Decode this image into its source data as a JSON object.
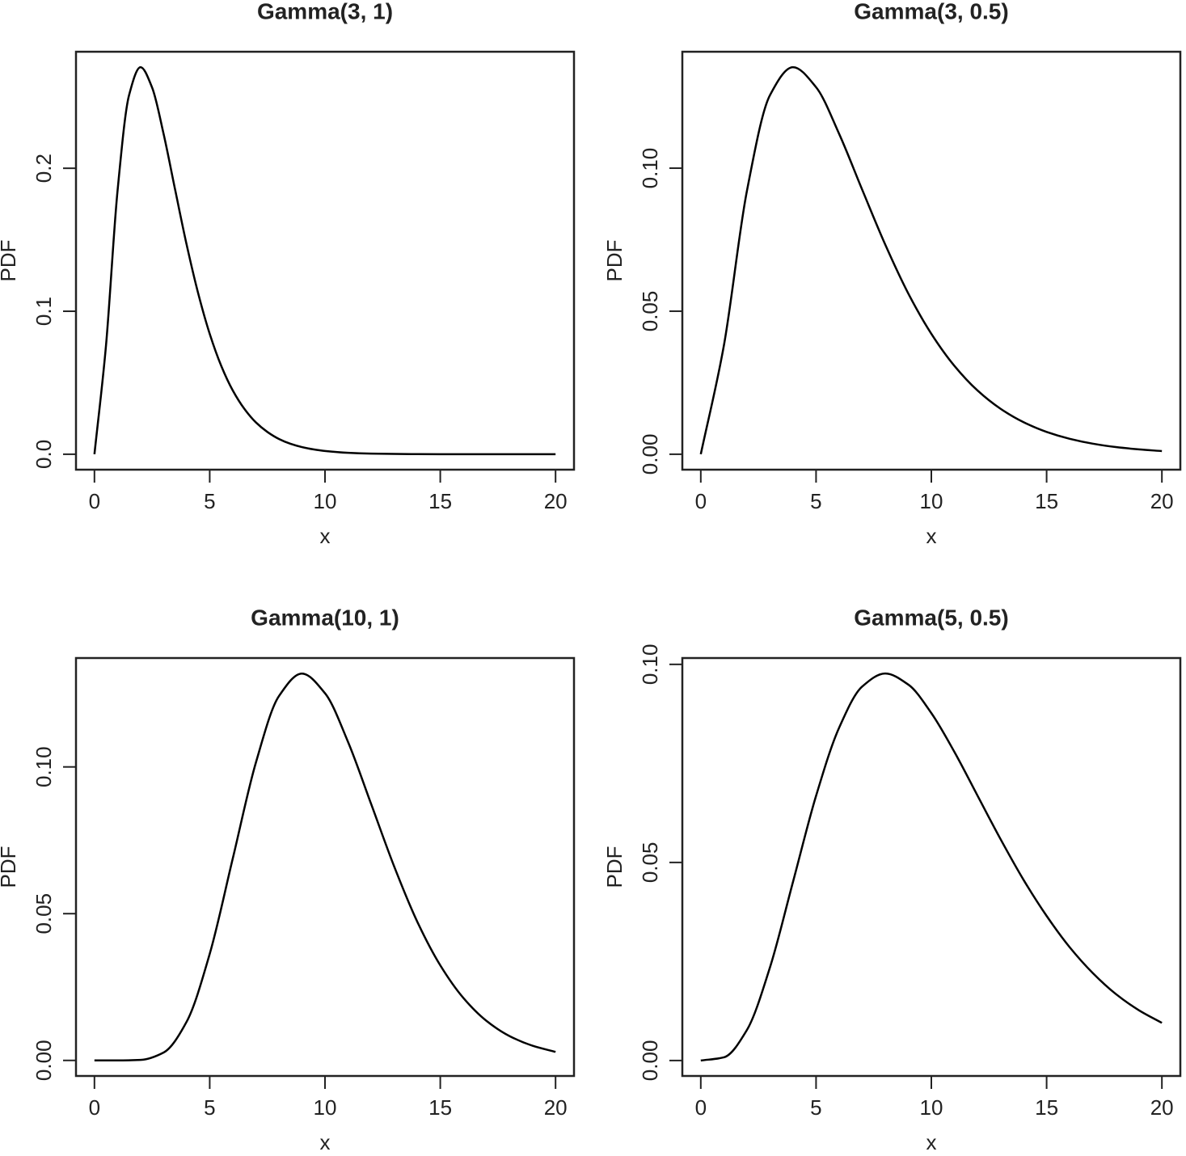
{
  "chart_data": [
    {
      "type": "line",
      "title": "Gamma(3, 1)",
      "x_label": "x",
      "y_label": "PDF",
      "color": "#000000",
      "x": [
        0,
        0.5,
        1,
        1.5,
        2,
        2.5,
        3,
        3.5,
        4,
        4.5,
        5,
        5.5,
        6,
        6.5,
        7,
        7.5,
        8,
        8.5,
        9,
        9.5,
        10,
        11,
        12,
        13,
        14,
        15,
        16,
        17,
        18,
        19,
        20
      ],
      "values": [
        0,
        0.0758,
        0.1839,
        0.251,
        0.2707,
        0.2565,
        0.224,
        0.185,
        0.1465,
        0.1125,
        0.0842,
        0.0618,
        0.0446,
        0.0318,
        0.0223,
        0.0156,
        0.0107,
        0.0073,
        0.005,
        0.0034,
        0.0023,
        0.001,
        0.00044,
        0.00019,
        8e-05,
        3e-05,
        1e-05,
        0,
        0,
        0,
        0
      ],
      "xlim": [
        -0.8,
        20.8
      ],
      "ylim": [
        -0.0108,
        0.2815
      ],
      "xticks": [
        0,
        5,
        10,
        15,
        20
      ],
      "yticks": [
        {
          "value": 0,
          "label": "0.0"
        },
        0.1,
        0.2
      ]
    },
    {
      "type": "line",
      "title": "Gamma(3, 0.5)",
      "x_label": "x",
      "y_label": "PDF",
      "color": "#000000",
      "x": [
        0,
        1,
        2,
        3,
        4,
        5,
        6,
        7,
        8,
        9,
        10,
        11,
        12,
        13,
        14,
        15,
        16,
        17,
        18,
        19,
        20
      ],
      "values": [
        0,
        0.0379,
        0.092,
        0.1255,
        0.1353,
        0.1283,
        0.112,
        0.0925,
        0.0733,
        0.0562,
        0.0421,
        0.0309,
        0.0223,
        0.0159,
        0.0112,
        0.0078,
        0.0054,
        0.0037,
        0.0025,
        0.0017,
        0.0011
      ],
      "xlim": [
        -0.8,
        20.8
      ],
      "ylim": [
        -0.0054,
        0.1407
      ],
      "xticks": [
        0,
        5,
        10,
        15,
        20
      ],
      "yticks": [
        {
          "value": 0,
          "label": "0.00"
        },
        0.05,
        {
          "value": 0.1,
          "label": "0.10"
        }
      ]
    },
    {
      "type": "line",
      "title": "Gamma(10, 1)",
      "x_label": "x",
      "y_label": "PDF",
      "color": "#000000",
      "x": [
        0,
        1,
        2,
        3,
        4,
        5,
        6,
        7,
        8,
        9,
        10,
        11,
        12,
        13,
        14,
        15,
        16,
        17,
        18,
        19,
        20
      ],
      "values": [
        0,
        0,
        0.00019,
        0.0027,
        0.0132,
        0.0363,
        0.0688,
        0.1014,
        0.1241,
        0.1318,
        0.1251,
        0.1085,
        0.0874,
        0.0661,
        0.0473,
        0.0324,
        0.0213,
        0.0135,
        0.0083,
        0.005,
        0.0029
      ],
      "xlim": [
        -0.8,
        20.8
      ],
      "ylim": [
        -0.0053,
        0.1371
      ],
      "xticks": [
        0,
        5,
        10,
        15,
        20
      ],
      "yticks": [
        {
          "value": 0,
          "label": "0.00"
        },
        0.05,
        {
          "value": 0.1,
          "label": "0.10"
        }
      ]
    },
    {
      "type": "line",
      "title": "Gamma(5, 0.5)",
      "x_label": "x",
      "y_label": "PDF",
      "color": "#000000",
      "x": [
        0,
        1,
        2,
        3,
        4,
        5,
        6,
        7,
        8,
        9,
        10,
        11,
        12,
        13,
        14,
        15,
        16,
        17,
        18,
        19,
        20
      ],
      "values": [
        0,
        0.0008,
        0.0077,
        0.0235,
        0.0451,
        0.0668,
        0.084,
        0.0944,
        0.0977,
        0.0949,
        0.0877,
        0.0779,
        0.0669,
        0.0559,
        0.0456,
        0.0365,
        0.0286,
        0.0221,
        0.0168,
        0.0127,
        0.0095
      ],
      "xlim": [
        -0.8,
        20.8
      ],
      "ylim": [
        -0.0039,
        0.1016
      ],
      "xticks": [
        0,
        5,
        10,
        15,
        20
      ],
      "yticks": [
        {
          "value": 0,
          "label": "0.00"
        },
        0.05,
        {
          "value": 0.1,
          "label": "0.10"
        }
      ]
    }
  ]
}
